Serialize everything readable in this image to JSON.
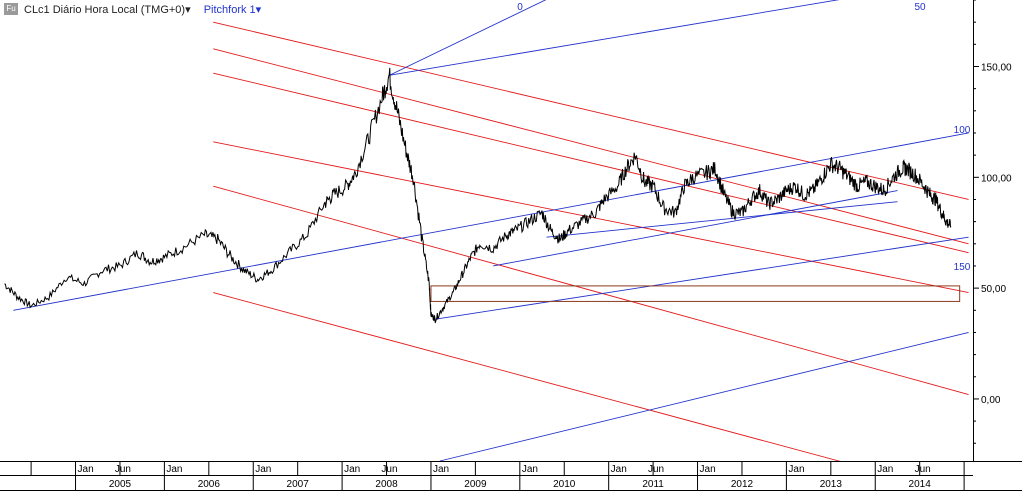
{
  "header": {
    "badge": "Fu",
    "symbol": "CLc1 Diário Hora Local (TMG+0)",
    "symbol_arrow": "▾",
    "tool": "Pitchfork 1",
    "tool_arrow": "▾"
  },
  "chart_data": {
    "type": "line",
    "series": [
      {
        "values": [
          [
            2004.2,
            52
          ],
          [
            2004.35,
            46
          ],
          [
            2004.5,
            42
          ],
          [
            2004.7,
            46
          ],
          [
            2004.9,
            55
          ],
          [
            2005.1,
            52
          ],
          [
            2005.3,
            58
          ],
          [
            2005.5,
            60
          ],
          [
            2005.7,
            66
          ],
          [
            2005.85,
            62
          ],
          [
            2006.0,
            64
          ],
          [
            2006.2,
            68
          ],
          [
            2006.45,
            74
          ],
          [
            2006.6,
            72
          ],
          [
            2006.75,
            64
          ],
          [
            2006.9,
            58
          ],
          [
            2007.05,
            54
          ],
          [
            2007.2,
            58
          ],
          [
            2007.4,
            66
          ],
          [
            2007.6,
            74
          ],
          [
            2007.8,
            88
          ],
          [
            2007.9,
            92
          ],
          [
            2008.05,
            96
          ],
          [
            2008.15,
            102
          ],
          [
            2008.3,
            118
          ],
          [
            2008.45,
            136
          ],
          [
            2008.53,
            146
          ],
          [
            2008.62,
            130
          ],
          [
            2008.72,
            112
          ],
          [
            2008.8,
            100
          ],
          [
            2008.9,
            72
          ],
          [
            2008.98,
            52
          ],
          [
            2009.0,
            38
          ],
          [
            2009.05,
            36
          ],
          [
            2009.15,
            42
          ],
          [
            2009.25,
            48
          ],
          [
            2009.35,
            56
          ],
          [
            2009.45,
            64
          ],
          [
            2009.55,
            70
          ],
          [
            2009.7,
            68
          ],
          [
            2009.85,
            74
          ],
          [
            2009.95,
            76
          ],
          [
            2010.1,
            80
          ],
          [
            2010.25,
            84
          ],
          [
            2010.35,
            76
          ],
          [
            2010.45,
            72
          ],
          [
            2010.55,
            76
          ],
          [
            2010.7,
            80
          ],
          [
            2010.85,
            84
          ],
          [
            2010.95,
            90
          ],
          [
            2011.1,
            96
          ],
          [
            2011.2,
            104
          ],
          [
            2011.3,
            110
          ],
          [
            2011.4,
            98
          ],
          [
            2011.5,
            96
          ],
          [
            2011.62,
            86
          ],
          [
            2011.75,
            84
          ],
          [
            2011.85,
            96
          ],
          [
            2011.95,
            100
          ],
          [
            2012.1,
            102
          ],
          [
            2012.2,
            104
          ],
          [
            2012.3,
            92
          ],
          [
            2012.4,
            84
          ],
          [
            2012.5,
            84
          ],
          [
            2012.6,
            90
          ],
          [
            2012.7,
            94
          ],
          [
            2012.8,
            88
          ],
          [
            2012.9,
            90
          ],
          [
            2013.0,
            94
          ],
          [
            2013.1,
            96
          ],
          [
            2013.2,
            92
          ],
          [
            2013.3,
            94
          ],
          [
            2013.4,
            100
          ],
          [
            2013.5,
            106
          ],
          [
            2013.6,
            104
          ],
          [
            2013.7,
            100
          ],
          [
            2013.8,
            96
          ],
          [
            2013.9,
            98
          ],
          [
            2014.0,
            96
          ],
          [
            2014.1,
            94
          ],
          [
            2014.2,
            100
          ],
          [
            2014.3,
            104
          ],
          [
            2014.35,
            104
          ],
          [
            2014.45,
            101
          ],
          [
            2014.55,
            96
          ],
          [
            2014.62,
            92
          ],
          [
            2014.68,
            90
          ],
          [
            2014.75,
            84
          ],
          [
            2014.8,
            80
          ],
          [
            2014.85,
            78
          ]
        ]
      }
    ],
    "xlabel": "",
    "ylabel": "",
    "xlim": [
      2004.15,
      2015.1
    ],
    "ylim": [
      -28,
      180
    ],
    "y_ticks": [
      {
        "value": 150,
        "label": "150,00"
      },
      {
        "value": 100,
        "label": "100,00"
      },
      {
        "value": 50,
        "label": "50,00"
      },
      {
        "value": 0,
        "label": "0,00"
      }
    ],
    "x_month_ticks": [
      {
        "x": 2005.0,
        "label": "Jan"
      },
      {
        "x": 2005.42,
        "label": "Jun"
      },
      {
        "x": 2006.0,
        "label": "Jan"
      },
      {
        "x": 2007.0,
        "label": "Jan"
      },
      {
        "x": 2008.0,
        "label": "Jan"
      },
      {
        "x": 2008.42,
        "label": "Jun"
      },
      {
        "x": 2009.0,
        "label": "Jan"
      },
      {
        "x": 2010.0,
        "label": "Jan"
      },
      {
        "x": 2011.0,
        "label": "Jan"
      },
      {
        "x": 2011.42,
        "label": "Jun"
      },
      {
        "x": 2012.0,
        "label": "Jan"
      },
      {
        "x": 2013.0,
        "label": "Jan"
      },
      {
        "x": 2014.0,
        "label": "Jan"
      },
      {
        "x": 2014.42,
        "label": "Jun"
      }
    ],
    "x_year_labels": [
      {
        "x": 2005.5,
        "label": "2005"
      },
      {
        "x": 2006.5,
        "label": "2006"
      },
      {
        "x": 2007.5,
        "label": "2007"
      },
      {
        "x": 2008.5,
        "label": "2008"
      },
      {
        "x": 2009.5,
        "label": "2009"
      },
      {
        "x": 2010.5,
        "label": "2010"
      },
      {
        "x": 2011.5,
        "label": "2011"
      },
      {
        "x": 2012.5,
        "label": "2012"
      },
      {
        "x": 2013.5,
        "label": "2013"
      },
      {
        "x": 2014.5,
        "label": "2014"
      }
    ],
    "annotations": {
      "blue_levels": [
        {
          "label": "0",
          "p1": [
            2008.53,
            146
          ],
          "p2": [
            2010.7,
            188
          ]
        },
        {
          "label": "50",
          "p1": [
            2008.53,
            146
          ],
          "p2": [
            2015.05,
            190
          ]
        },
        {
          "label": "100",
          "p1": [
            2004.3,
            40
          ],
          "p2": [
            2015.05,
            120
          ]
        },
        {
          "label": "150",
          "p1": [
            2009.05,
            36
          ],
          "p2": [
            2015.05,
            73
          ]
        },
        {
          "label": "",
          "p1": [
            2009.1,
            -28
          ],
          "p2": [
            2015.05,
            30
          ]
        }
      ],
      "blue_trendlines": [
        {
          "p1": [
            2009.7,
            60
          ],
          "p2": [
            2014.25,
            94
          ]
        },
        {
          "p1": [
            2010.3,
            73
          ],
          "p2": [
            2014.25,
            89
          ]
        }
      ],
      "red_channels": [
        {
          "p1": [
            2006.55,
            170
          ],
          "p2": [
            2015.05,
            90
          ]
        },
        {
          "p1": [
            2006.55,
            158
          ],
          "p2": [
            2015.05,
            70
          ]
        },
        {
          "p1": [
            2006.55,
            147
          ],
          "p2": [
            2015.05,
            66
          ]
        },
        {
          "p1": [
            2006.55,
            116
          ],
          "p2": [
            2015.05,
            48
          ]
        },
        {
          "p1": [
            2006.55,
            96
          ],
          "p2": [
            2015.05,
            2
          ]
        },
        {
          "p1": [
            2006.55,
            48
          ],
          "p2": [
            2014.7,
            -40
          ]
        }
      ],
      "box": {
        "x1": 2009.0,
        "x2": 2014.95,
        "y1": 44,
        "y2": 51
      }
    },
    "grid": false,
    "legend": "none"
  },
  "colors": {
    "price": "#000000",
    "pitchfork": "#2233cc",
    "channel": "#e41a1a",
    "box": "#8b3a1a",
    "box_fill": "#fff7ee"
  }
}
